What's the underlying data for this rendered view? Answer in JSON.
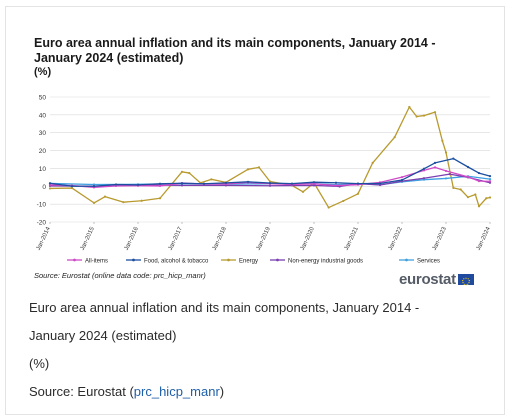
{
  "figure": {
    "caption_title": "Euro area annual inflation and its main components, January 2014 - January 2024 (estimated)",
    "caption_title_line1": "Euro area annual inflation and its main components, January 2014 -",
    "caption_title_line2": "January 2024 (estimated)",
    "caption_unit": "(%)",
    "caption_source_prefix": "Source: Eurostat (",
    "caption_source_link": "prc_hicp_manr",
    "caption_source_suffix": ")",
    "chart_source_note": "Source: Eurostat (online data code: prc_hicp_manr)",
    "logo_text": "eurostat"
  },
  "colors": {
    "all_items": "#d04ac8",
    "food": "#1c4fa0",
    "energy": "#b89a2e",
    "non_energy": "#7b3fb0",
    "services": "#3fa0e0",
    "grid": "#d9d9d9",
    "logo_flag": "#1f4a9e",
    "link": "#1f5fa9"
  },
  "chart_data": {
    "type": "line",
    "title": "Euro area annual inflation and its main components, January 2014 - January 2024 (estimated)",
    "unit": "(%)",
    "y_range": [
      -20,
      50
    ],
    "y_ticks": [
      50,
      40,
      30,
      20,
      10,
      0,
      -10,
      -20
    ],
    "x_range": [
      "2014-01",
      "2024-01"
    ],
    "x_tick_labels": [
      "Jan-2014",
      "Jan-2015",
      "Jan-2016",
      "Jan-2017",
      "Jan-2018",
      "Jan-2019",
      "Jan-2020",
      "Jan-2021",
      "Jan-2022",
      "Jan-2023",
      "Jan-2024"
    ],
    "grid": "horizontal",
    "legend_position": "bottom",
    "series": [
      {
        "name": "All-items",
        "key": "all_items",
        "points": [
          [
            "2014-01",
            0.8
          ],
          [
            "2014-07",
            0.4
          ],
          [
            "2015-01",
            -0.6
          ],
          [
            "2015-07",
            0.2
          ],
          [
            "2016-01",
            0.3
          ],
          [
            "2016-07",
            0.2
          ],
          [
            "2017-01",
            1.8
          ],
          [
            "2017-07",
            1.3
          ],
          [
            "2018-01",
            1.3
          ],
          [
            "2018-07",
            2.1
          ],
          [
            "2019-01",
            1.4
          ],
          [
            "2019-07",
            1.0
          ],
          [
            "2020-01",
            1.4
          ],
          [
            "2020-07",
            0.4
          ],
          [
            "2021-01",
            0.9
          ],
          [
            "2021-07",
            2.2
          ],
          [
            "2022-01",
            5.1
          ],
          [
            "2022-07",
            8.9
          ],
          [
            "2022-10",
            10.6
          ],
          [
            "2023-01",
            8.6
          ],
          [
            "2023-07",
            5.3
          ],
          [
            "2023-10",
            2.9
          ],
          [
            "2024-01",
            2.8
          ]
        ]
      },
      {
        "name": "Food, alcohol & tobacco",
        "key": "food",
        "points": [
          [
            "2014-01",
            1.7
          ],
          [
            "2014-07",
            0.0
          ],
          [
            "2015-01",
            0.0
          ],
          [
            "2015-07",
            1.0
          ],
          [
            "2016-01",
            0.8
          ],
          [
            "2016-07",
            1.4
          ],
          [
            "2017-01",
            1.7
          ],
          [
            "2017-07",
            1.4
          ],
          [
            "2018-01",
            1.9
          ],
          [
            "2018-07",
            2.5
          ],
          [
            "2019-01",
            1.8
          ],
          [
            "2019-07",
            1.5
          ],
          [
            "2020-01",
            2.3
          ],
          [
            "2020-07",
            2.0
          ],
          [
            "2021-01",
            1.5
          ],
          [
            "2021-07",
            1.6
          ],
          [
            "2022-01",
            3.5
          ],
          [
            "2022-07",
            9.8
          ],
          [
            "2022-10",
            13.1
          ],
          [
            "2023-03",
            15.5
          ],
          [
            "2023-07",
            10.8
          ],
          [
            "2023-10",
            7.4
          ],
          [
            "2024-01",
            5.7
          ]
        ]
      },
      {
        "name": "Energy",
        "key": "energy",
        "points": [
          [
            "2014-01",
            -1.2
          ],
          [
            "2014-07",
            -1.0
          ],
          [
            "2015-01",
            -9.3
          ],
          [
            "2015-04",
            -5.8
          ],
          [
            "2015-09",
            -8.9
          ],
          [
            "2016-02",
            -8.1
          ],
          [
            "2016-07",
            -6.7
          ],
          [
            "2017-01",
            8.1
          ],
          [
            "2017-03",
            7.4
          ],
          [
            "2017-06",
            1.9
          ],
          [
            "2017-09",
            3.9
          ],
          [
            "2018-01",
            2.2
          ],
          [
            "2018-07",
            9.5
          ],
          [
            "2018-10",
            10.6
          ],
          [
            "2019-01",
            2.7
          ],
          [
            "2019-07",
            0.5
          ],
          [
            "2019-10",
            -3.1
          ],
          [
            "2020-01",
            1.9
          ],
          [
            "2020-05",
            -11.9
          ],
          [
            "2020-09",
            -8.2
          ],
          [
            "2021-01",
            -4.2
          ],
          [
            "2021-05",
            13.1
          ],
          [
            "2021-11",
            27.5
          ],
          [
            "2022-03",
            44.4
          ],
          [
            "2022-05",
            39.1
          ],
          [
            "2022-07",
            39.6
          ],
          [
            "2022-10",
            41.5
          ],
          [
            "2022-12",
            25.5
          ],
          [
            "2023-01",
            18.9
          ],
          [
            "2023-03",
            -0.9
          ],
          [
            "2023-05",
            -1.8
          ],
          [
            "2023-07",
            -6.1
          ],
          [
            "2023-09",
            -4.6
          ],
          [
            "2023-10",
            -11.2
          ],
          [
            "2023-12",
            -6.7
          ],
          [
            "2024-01",
            -6.3
          ]
        ]
      },
      {
        "name": "Non-energy industrial goods",
        "key": "non_energy",
        "points": [
          [
            "2014-01",
            0.2
          ],
          [
            "2015-01",
            0.1
          ],
          [
            "2016-01",
            0.7
          ],
          [
            "2017-01",
            0.5
          ],
          [
            "2018-01",
            0.5
          ],
          [
            "2019-01",
            0.3
          ],
          [
            "2020-01",
            0.5
          ],
          [
            "2020-08",
            -0.1
          ],
          [
            "2021-01",
            1.5
          ],
          [
            "2021-07",
            0.7
          ],
          [
            "2022-01",
            2.9
          ],
          [
            "2022-07",
            4.5
          ],
          [
            "2023-02",
            6.8
          ],
          [
            "2023-07",
            5.0
          ],
          [
            "2024-01",
            2.0
          ]
        ]
      },
      {
        "name": "Services",
        "key": "services",
        "points": [
          [
            "2014-01",
            1.6
          ],
          [
            "2015-01",
            1.0
          ],
          [
            "2016-01",
            1.1
          ],
          [
            "2017-01",
            1.5
          ],
          [
            "2018-01",
            1.2
          ],
          [
            "2019-01",
            1.4
          ],
          [
            "2020-01",
            1.5
          ],
          [
            "2020-07",
            0.9
          ],
          [
            "2021-01",
            1.4
          ],
          [
            "2021-07",
            0.9
          ],
          [
            "2022-01",
            2.5
          ],
          [
            "2022-07",
            3.7
          ],
          [
            "2023-01",
            4.4
          ],
          [
            "2023-07",
            5.6
          ],
          [
            "2024-01",
            4.0
          ]
        ]
      }
    ]
  }
}
